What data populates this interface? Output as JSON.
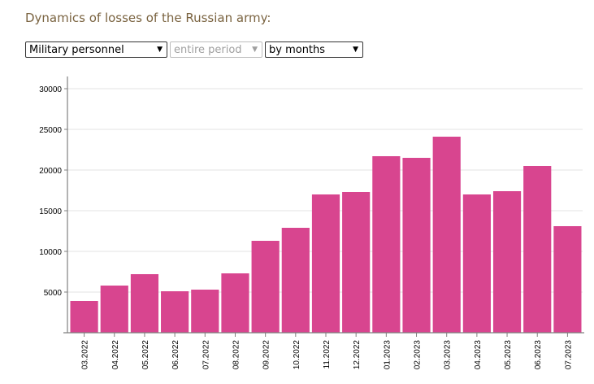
{
  "header": {
    "title": "Dynamics of losses of the Russian army:"
  },
  "filters": {
    "category": "Military personnel",
    "period": "entire period",
    "grouping": "by months"
  },
  "colors": {
    "bar": "#d8458f",
    "axis": "#808080",
    "grid": "#e3e3e3"
  },
  "icons": {
    "dropdown": "chevron-down-icon"
  },
  "chart_data": {
    "type": "bar",
    "title": "",
    "xlabel": "",
    "ylabel": "",
    "categories": [
      "03.2022",
      "04.2022",
      "05.2022",
      "06.2022",
      "07.2022",
      "08.2022",
      "09.2022",
      "10.2022",
      "11.2022",
      "12.2022",
      "01.2023",
      "02.2023",
      "03.2023",
      "04.2023",
      "05.2023",
      "06.2023",
      "07.2023"
    ],
    "values": [
      3900,
      5800,
      7200,
      5100,
      5300,
      7300,
      11300,
      12900,
      17000,
      17300,
      21700,
      21500,
      24100,
      17000,
      17400,
      20500,
      13100
    ],
    "ylim": [
      0,
      30000
    ],
    "yticks": [
      "5000",
      "10000",
      "15000",
      "20000",
      "25000",
      "30000"
    ],
    "grid": true,
    "legend": "none"
  }
}
